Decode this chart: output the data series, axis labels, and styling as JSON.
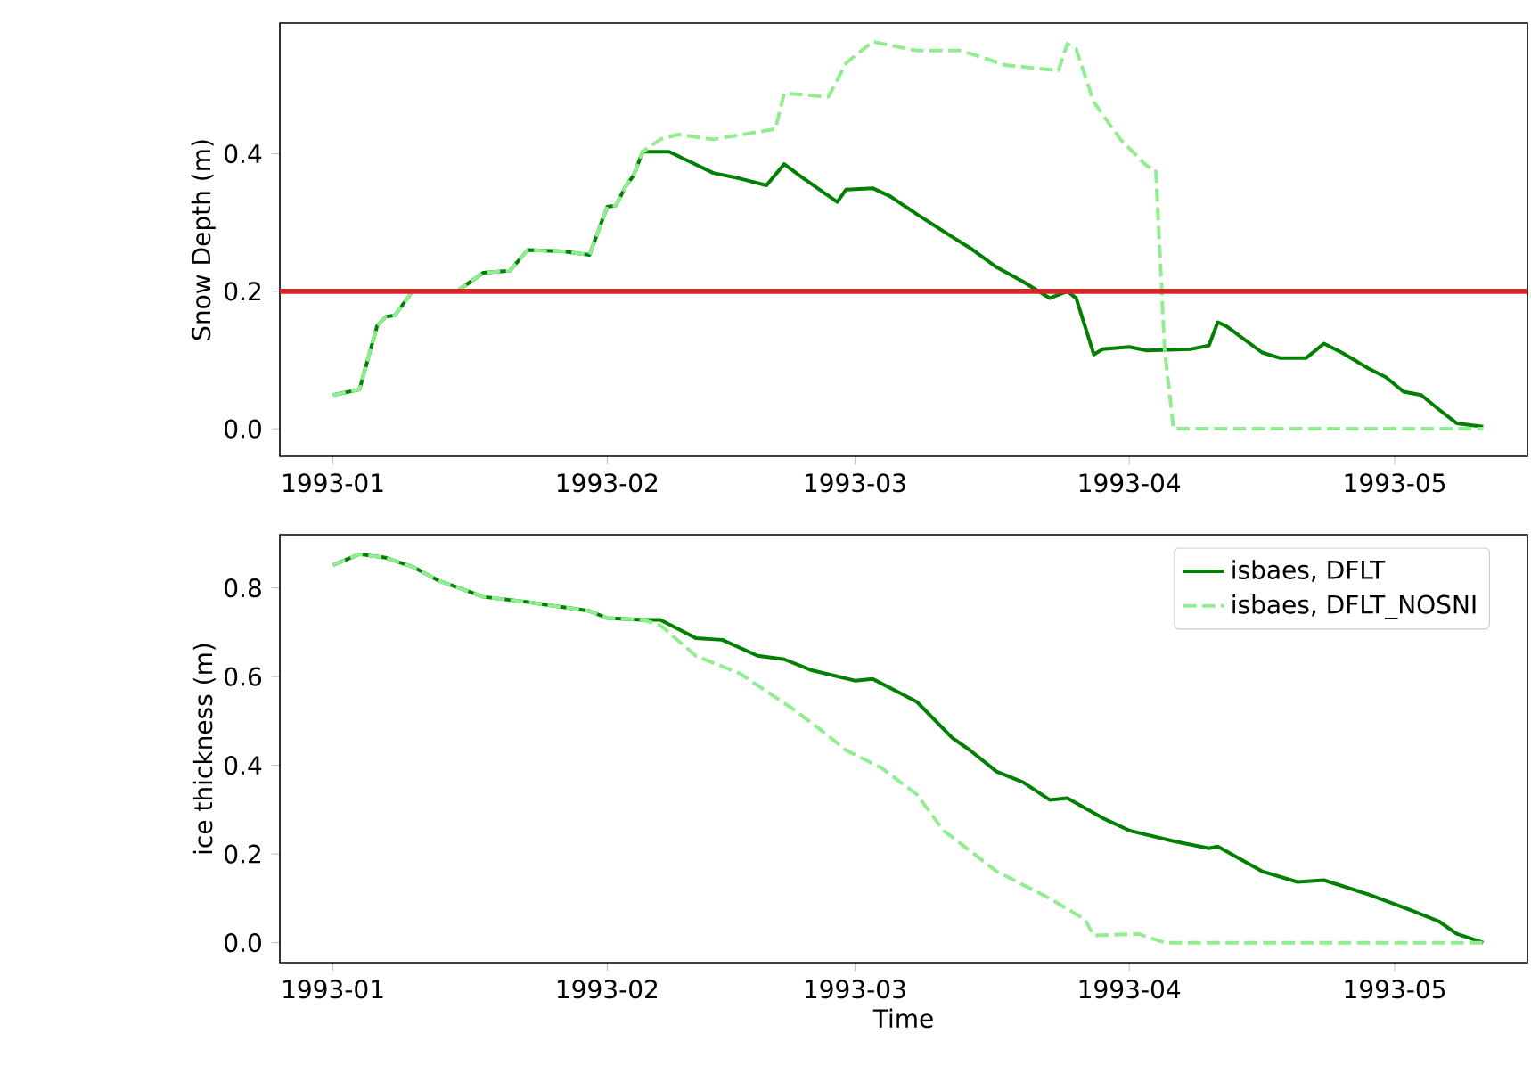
{
  "chart_data": [
    {
      "type": "line",
      "ylabel": "Snow Depth (m)",
      "xlim": [
        "1992-12-26",
        "1993-05-16"
      ],
      "ylim": [
        -0.04,
        0.59
      ],
      "xticks": [
        "1993-01",
        "1993-02",
        "1993-03",
        "1993-04",
        "1993-05"
      ],
      "yticks": [
        {
          "value": 0,
          "label": "0.0"
        },
        {
          "value": 0.2,
          "label": "0.2"
        },
        {
          "value": 0.4,
          "label": "0.4"
        }
      ],
      "series": [
        {
          "color": "#008000",
          "line_style": "solid",
          "x": [
            "1993-01-01",
            "1993-01-04",
            "1993-01-06",
            "1993-01-07",
            "1993-01-08",
            "1993-01-10",
            "1993-01-15",
            "1993-01-18",
            "1993-01-21",
            "1993-01-23",
            "1993-01-27",
            "1993-01-30",
            "1993-02-01",
            "1993-02-02",
            "1993-02-03",
            "1993-02-04",
            "1993-02-05",
            "1993-02-08",
            "1993-02-13",
            "1993-02-16",
            "1993-02-19",
            "1993-02-21",
            "1993-02-23",
            "1993-02-27",
            "1993-02-28",
            "1993-03-03",
            "1993-03-05",
            "1993-03-08",
            "1993-03-12",
            "1993-03-14",
            "1993-03-17",
            "1993-03-20",
            "1993-03-23",
            "1993-03-25",
            "1993-03-26",
            "1993-03-28",
            "1993-03-29",
            "1993-04-01",
            "1993-04-03",
            "1993-04-08",
            "1993-04-10",
            "1993-04-11",
            "1993-04-12",
            "1993-04-16",
            "1993-04-18",
            "1993-04-21",
            "1993-04-23",
            "1993-04-25",
            "1993-04-28",
            "1993-04-30",
            "1993-05-02",
            "1993-05-04",
            "1993-05-06",
            "1993-05-08",
            "1993-05-11"
          ],
          "values": [
            0.049,
            0.057,
            0.15,
            0.163,
            0.165,
            0.2,
            0.2,
            0.227,
            0.23,
            0.26,
            0.258,
            0.253,
            0.323,
            0.325,
            0.351,
            0.369,
            0.403,
            0.403,
            0.372,
            0.364,
            0.354,
            0.385,
            0.366,
            0.33,
            0.348,
            0.35,
            0.338,
            0.312,
            0.279,
            0.263,
            0.235,
            0.214,
            0.19,
            0.2,
            0.19,
            0.108,
            0.116,
            0.119,
            0.114,
            0.116,
            0.121,
            0.155,
            0.149,
            0.111,
            0.103,
            0.103,
            0.124,
            0.111,
            0.088,
            0.075,
            0.054,
            0.049,
            0.028,
            0.008,
            0.003
          ]
        },
        {
          "color": "#90ee90",
          "line_style": "dashed",
          "x": [
            "1993-01-01",
            "1993-01-04",
            "1993-01-06",
            "1993-01-07",
            "1993-01-08",
            "1993-01-10",
            "1993-01-15",
            "1993-01-18",
            "1993-01-21",
            "1993-01-23",
            "1993-01-27",
            "1993-01-30",
            "1993-02-01",
            "1993-02-02",
            "1993-02-03",
            "1993-02-04",
            "1993-02-05",
            "1993-02-07",
            "1993-02-09",
            "1993-02-13",
            "1993-02-20",
            "1993-02-21",
            "1993-02-26",
            "1993-02-28",
            "1993-03-03",
            "1993-03-08",
            "1993-03-13",
            "1993-03-18",
            "1993-03-24",
            "1993-03-25",
            "1993-03-26",
            "1993-03-28",
            "1993-03-31",
            "1993-04-03",
            "1993-04-04",
            "1993-04-05",
            "1993-04-06",
            "1993-05-11"
          ],
          "values": [
            0.049,
            0.057,
            0.15,
            0.163,
            0.165,
            0.2,
            0.2,
            0.227,
            0.23,
            0.26,
            0.258,
            0.253,
            0.323,
            0.325,
            0.351,
            0.369,
            0.403,
            0.421,
            0.428,
            0.421,
            0.436,
            0.488,
            0.483,
            0.532,
            0.563,
            0.55,
            0.55,
            0.529,
            0.521,
            0.56,
            0.552,
            0.475,
            0.421,
            0.382,
            0.377,
            0.114,
            0,
            0
          ]
        }
      ],
      "ref_lines": [
        {
          "axis": "y",
          "value": 0.2,
          "color": "#d62728"
        }
      ]
    },
    {
      "type": "line",
      "xlabel": "Time",
      "ylabel": "ice thickness (m)",
      "xlim": [
        "1992-12-26",
        "1993-05-16"
      ],
      "ylim": [
        -0.045,
        0.92
      ],
      "xticks": [
        "1993-01",
        "1993-02",
        "1993-03",
        "1993-04",
        "1993-05"
      ],
      "yticks": [
        {
          "value": 0,
          "label": "0.0"
        },
        {
          "value": 0.2,
          "label": "0.2"
        },
        {
          "value": 0.4,
          "label": "0.4"
        },
        {
          "value": 0.6,
          "label": "0.6"
        },
        {
          "value": 0.8,
          "label": "0.8"
        }
      ],
      "legend": "top right",
      "series": [
        {
          "name": "isbaes, DFLT",
          "color": "#008000",
          "line_style": "solid",
          "x": [
            "1993-01-01",
            "1993-01-04",
            "1993-01-07",
            "1993-01-10",
            "1993-01-13",
            "1993-01-18",
            "1993-01-23",
            "1993-01-30",
            "1993-02-01",
            "1993-02-05",
            "1993-02-07",
            "1993-02-11",
            "1993-02-14",
            "1993-02-18",
            "1993-02-21",
            "1993-02-24",
            "1993-03-01",
            "1993-03-03",
            "1993-03-08",
            "1993-03-12",
            "1993-03-14",
            "1993-03-17",
            "1993-03-20",
            "1993-03-23",
            "1993-03-25",
            "1993-03-29",
            "1993-04-01",
            "1993-04-06",
            "1993-04-10",
            "1993-04-11",
            "1993-04-16",
            "1993-04-20",
            "1993-04-23",
            "1993-04-28",
            "1993-05-03",
            "1993-05-06",
            "1993-05-08",
            "1993-05-11"
          ],
          "values": [
            0.852,
            0.876,
            0.868,
            0.848,
            0.816,
            0.78,
            0.768,
            0.748,
            0.732,
            0.728,
            0.728,
            0.687,
            0.683,
            0.647,
            0.639,
            0.615,
            0.591,
            0.595,
            0.543,
            0.462,
            0.434,
            0.386,
            0.362,
            0.322,
            0.326,
            0.281,
            0.253,
            0.229,
            0.213,
            0.217,
            0.161,
            0.137,
            0.141,
            0.109,
            0.072,
            0.048,
            0.02,
            0
          ]
        },
        {
          "name": "isbaes, DFLT_NOSNI",
          "color": "#90ee90",
          "line_style": "dashed",
          "x": [
            "1993-01-01",
            "1993-01-04",
            "1993-01-07",
            "1993-01-10",
            "1993-01-13",
            "1993-01-18",
            "1993-01-23",
            "1993-01-30",
            "1993-02-01",
            "1993-02-05",
            "1993-02-07",
            "1993-02-11",
            "1993-02-16",
            "1993-02-22",
            "1993-02-25",
            "1993-02-28",
            "1993-03-04",
            "1993-03-08",
            "1993-03-11",
            "1993-03-17",
            "1993-03-23",
            "1993-03-27",
            "1993-03-28",
            "1993-04-02",
            "1993-04-05",
            "1993-05-11"
          ],
          "values": [
            0.852,
            0.876,
            0.868,
            0.848,
            0.816,
            0.78,
            0.768,
            0.748,
            0.732,
            0.728,
            0.716,
            0.647,
            0.607,
            0.527,
            0.482,
            0.434,
            0.394,
            0.334,
            0.253,
            0.161,
            0.1,
            0.052,
            0.016,
            0.02,
            0,
            0
          ]
        }
      ]
    }
  ]
}
